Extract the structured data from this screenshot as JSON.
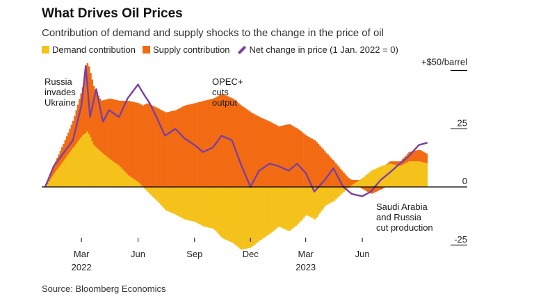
{
  "colors": {
    "demand": "#F5C21B",
    "supply": "#F26B13",
    "net": "#7B3FA0",
    "axis": "#000000"
  },
  "chart_data": {
    "type": "area",
    "title": "What Drives Oil Prices",
    "subtitle": "Contribution of demand and supply shocks to the change in the price of oil",
    "legend": {
      "demand": "Demand contribution",
      "supply": "Supply contribution",
      "net": "Net change in price (1 Jan. 2022 = 0)"
    },
    "y_axis": {
      "unit_label": "+$50/barrel",
      "tick_labels": [
        "25",
        "0",
        "-25"
      ],
      "ylim": [
        -30,
        55
      ],
      "side": "right"
    },
    "x_axis": {
      "ticks": [
        {
          "date": "2022-03-01",
          "label": "Mar",
          "year": "2022"
        },
        {
          "date": "2022-06-01",
          "label": "Jun",
          "year": ""
        },
        {
          "date": "2022-09-01",
          "label": "Sep",
          "year": ""
        },
        {
          "date": "2022-12-01",
          "label": "Dec",
          "year": ""
        },
        {
          "date": "2023-03-01",
          "label": "Mar",
          "year": "2023"
        },
        {
          "date": "2023-06-01",
          "label": "Jun",
          "year": ""
        }
      ],
      "range": [
        "2022-01-01",
        "2023-09-30"
      ]
    },
    "series": [
      {
        "name": "Demand contribution",
        "key": "demand",
        "points": [
          [
            "2022-01-01",
            0
          ],
          [
            "2022-01-15",
            6
          ],
          [
            "2022-02-01",
            12
          ],
          [
            "2022-02-15",
            17
          ],
          [
            "2022-03-01",
            22
          ],
          [
            "2022-03-10",
            24
          ],
          [
            "2022-03-20",
            18
          ],
          [
            "2022-04-01",
            15
          ],
          [
            "2022-04-15",
            12
          ],
          [
            "2022-05-01",
            9
          ],
          [
            "2022-05-15",
            5
          ],
          [
            "2022-06-01",
            2
          ],
          [
            "2022-06-15",
            -2
          ],
          [
            "2022-07-01",
            -6
          ],
          [
            "2022-07-15",
            -10
          ],
          [
            "2022-08-01",
            -12
          ],
          [
            "2022-08-15",
            -14
          ],
          [
            "2022-09-01",
            -15
          ],
          [
            "2022-09-15",
            -17
          ],
          [
            "2022-10-01",
            -18
          ],
          [
            "2022-10-15",
            -22
          ],
          [
            "2022-11-01",
            -24
          ],
          [
            "2022-11-15",
            -27
          ],
          [
            "2022-12-01",
            -26
          ],
          [
            "2022-12-15",
            -23
          ],
          [
            "2023-01-01",
            -20
          ],
          [
            "2023-01-15",
            -17
          ],
          [
            "2023-02-01",
            -19
          ],
          [
            "2023-02-15",
            -16
          ],
          [
            "2023-03-01",
            -12
          ],
          [
            "2023-03-15",
            -14
          ],
          [
            "2023-04-01",
            -8
          ],
          [
            "2023-04-15",
            -6
          ],
          [
            "2023-05-01",
            -2
          ],
          [
            "2023-05-15",
            1
          ],
          [
            "2023-06-01",
            4
          ],
          [
            "2023-06-15",
            7
          ],
          [
            "2023-07-01",
            9
          ],
          [
            "2023-07-15",
            10
          ],
          [
            "2023-08-01",
            9
          ],
          [
            "2023-08-15",
            11
          ],
          [
            "2023-09-01",
            11
          ],
          [
            "2023-09-15",
            10
          ]
        ]
      },
      {
        "name": "Supply contribution",
        "key": "supply",
        "points": [
          [
            "2022-01-01",
            0
          ],
          [
            "2022-01-15",
            4
          ],
          [
            "2022-02-01",
            8
          ],
          [
            "2022-02-15",
            12
          ],
          [
            "2022-03-01",
            20
          ],
          [
            "2022-03-10",
            30
          ],
          [
            "2022-03-20",
            25
          ],
          [
            "2022-04-01",
            22
          ],
          [
            "2022-04-15",
            26
          ],
          [
            "2022-05-01",
            28
          ],
          [
            "2022-05-15",
            32
          ],
          [
            "2022-06-01",
            34
          ],
          [
            "2022-06-15",
            36
          ],
          [
            "2022-07-01",
            34
          ],
          [
            "2022-07-15",
            32
          ],
          [
            "2022-08-01",
            33
          ],
          [
            "2022-08-15",
            35
          ],
          [
            "2022-09-01",
            36
          ],
          [
            "2022-09-15",
            37
          ],
          [
            "2022-10-01",
            38
          ],
          [
            "2022-10-15",
            40
          ],
          [
            "2022-11-01",
            38
          ],
          [
            "2022-11-15",
            35
          ],
          [
            "2022-12-01",
            32
          ],
          [
            "2022-12-15",
            30
          ],
          [
            "2023-01-01",
            28
          ],
          [
            "2023-01-15",
            26
          ],
          [
            "2023-02-01",
            27
          ],
          [
            "2023-02-15",
            25
          ],
          [
            "2023-03-01",
            22
          ],
          [
            "2023-03-15",
            20
          ],
          [
            "2023-04-01",
            15
          ],
          [
            "2023-04-15",
            11
          ],
          [
            "2023-05-01",
            6
          ],
          [
            "2023-05-15",
            2
          ],
          [
            "2023-06-01",
            -1
          ],
          [
            "2023-06-15",
            -3
          ],
          [
            "2023-07-01",
            -1
          ],
          [
            "2023-07-15",
            1
          ],
          [
            "2023-08-01",
            2
          ],
          [
            "2023-08-15",
            4
          ],
          [
            "2023-09-01",
            5
          ],
          [
            "2023-09-15",
            4
          ]
        ]
      },
      {
        "name": "Net change in price (1 Jan. 2022 = 0)",
        "key": "net",
        "points": [
          [
            "2022-01-01",
            0
          ],
          [
            "2022-01-15",
            9
          ],
          [
            "2022-02-01",
            15
          ],
          [
            "2022-02-15",
            20
          ],
          [
            "2022-03-01",
            35
          ],
          [
            "2022-03-08",
            52
          ],
          [
            "2022-03-15",
            30
          ],
          [
            "2022-03-25",
            42
          ],
          [
            "2022-04-05",
            28
          ],
          [
            "2022-04-15",
            33
          ],
          [
            "2022-05-01",
            30
          ],
          [
            "2022-05-15",
            38
          ],
          [
            "2022-06-01",
            44
          ],
          [
            "2022-06-10",
            40
          ],
          [
            "2022-06-20",
            36
          ],
          [
            "2022-07-01",
            30
          ],
          [
            "2022-07-15",
            22
          ],
          [
            "2022-08-01",
            25
          ],
          [
            "2022-08-15",
            21
          ],
          [
            "2022-09-01",
            18
          ],
          [
            "2022-09-15",
            15
          ],
          [
            "2022-10-01",
            17
          ],
          [
            "2022-10-15",
            22
          ],
          [
            "2022-11-01",
            20
          ],
          [
            "2022-11-15",
            10
          ],
          [
            "2022-12-01",
            0
          ],
          [
            "2022-12-15",
            7
          ],
          [
            "2023-01-01",
            10
          ],
          [
            "2023-01-15",
            9
          ],
          [
            "2023-02-01",
            7
          ],
          [
            "2023-02-15",
            10
          ],
          [
            "2023-03-01",
            6
          ],
          [
            "2023-03-15",
            -2
          ],
          [
            "2023-04-01",
            3
          ],
          [
            "2023-04-15",
            8
          ],
          [
            "2023-05-01",
            0
          ],
          [
            "2023-05-15",
            -3
          ],
          [
            "2023-06-01",
            -4
          ],
          [
            "2023-06-15",
            -2
          ],
          [
            "2023-07-01",
            3
          ],
          [
            "2023-07-15",
            6
          ],
          [
            "2023-08-01",
            10
          ],
          [
            "2023-08-15",
            13
          ],
          [
            "2023-09-01",
            18
          ],
          [
            "2023-09-15",
            19
          ]
        ]
      }
    ],
    "annotations": [
      {
        "lines": [
          "Russia",
          "invades",
          "Ukraine"
        ],
        "date": "2022-03-01"
      },
      {
        "lines": [
          "OPEC+",
          "cuts",
          "output"
        ],
        "date": "2022-10-05"
      },
      {
        "lines": [
          "Saudi Arabia",
          "and Russia",
          "cut production"
        ],
        "date": "2023-06-05"
      }
    ]
  },
  "source": "Source: Bloomberg Economics"
}
